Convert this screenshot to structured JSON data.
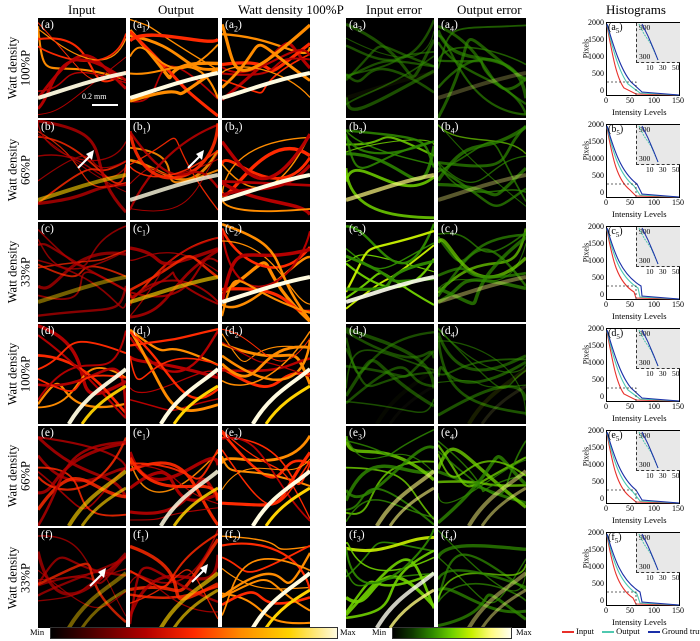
{
  "column_titles": [
    "Input",
    "Output",
    "Watt density 100%P",
    "Input error",
    "Output error",
    "Histograms"
  ],
  "row_labels": [
    {
      "line1": "Watt density",
      "line2": "100%P"
    },
    {
      "line1": "Watt density",
      "line2": "66%P"
    },
    {
      "line1": "Watt density",
      "line2": "33%P"
    },
    {
      "line1": "Watt density",
      "line2": "100%P"
    },
    {
      "line1": "Watt density",
      "line2": "66%P"
    },
    {
      "line1": "Watt density",
      "line2": "33%P"
    }
  ],
  "rows": [
    {
      "letter": "a",
      "error_level": 0.05,
      "out_error_level": 0.25
    },
    {
      "letter": "b",
      "error_level": 0.7,
      "out_error_level": 0.35
    },
    {
      "letter": "c",
      "error_level": 0.9,
      "out_error_level": 0.4
    },
    {
      "letter": "d",
      "error_level": 0.03,
      "out_error_level": 0.12
    },
    {
      "letter": "e",
      "error_level": 0.6,
      "out_error_level": 0.5
    },
    {
      "letter": "f",
      "error_level": 0.8,
      "out_error_level": 0.45
    }
  ],
  "scale_bar_label": "0.2 mm",
  "histogram": {
    "ylabel": "Pixels",
    "xlabel": "Intensity Levels",
    "yticks": [
      "2000",
      "1500",
      "1000",
      "500",
      "0"
    ],
    "xticks": [
      "0",
      "50",
      "100",
      "150"
    ],
    "inset_yticks": [
      "900",
      "300"
    ],
    "inset_xticks": [
      "10",
      "30",
      "50"
    ]
  },
  "colorbars": {
    "min_label": "Min",
    "max_label": "Max",
    "hot_colors": [
      "#000000",
      "#5a0000",
      "#b40000",
      "#ff2a00",
      "#ff8c00",
      "#ffd200",
      "#fffbe0"
    ],
    "green_colors": [
      "#000000",
      "#0f3a00",
      "#2f8a00",
      "#6fd000",
      "#c8f000",
      "#fffb80",
      "#fffff0"
    ]
  },
  "legend": {
    "items": [
      {
        "label": "Input",
        "color": "#e8302a"
      },
      {
        "label": "Output",
        "color": "#4fc8b0"
      },
      {
        "label": "Ground truth",
        "color": "#1a2fa8"
      }
    ]
  }
}
